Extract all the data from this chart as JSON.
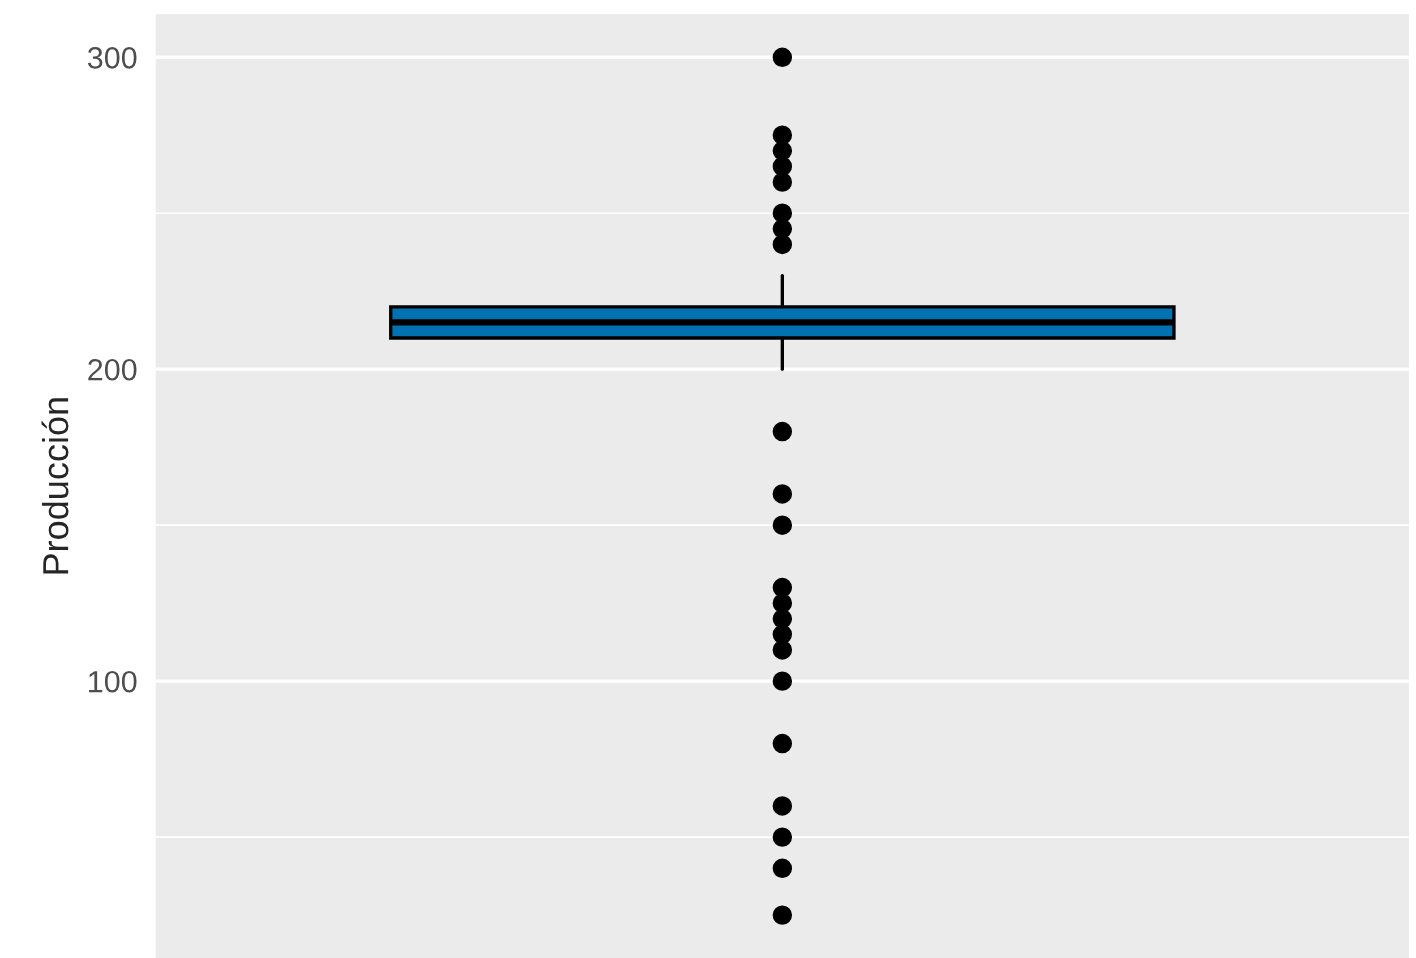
{
  "chart_data": {
    "type": "box",
    "ylabel": "Producción",
    "categories": [
      null
    ],
    "color": "#0072b2",
    "boxes": [
      {
        "low": 200,
        "q1": 210,
        "median": 215,
        "q3": 220,
        "high": 230,
        "outliers": [
          300,
          275,
          270,
          265,
          260,
          250,
          245,
          240,
          180,
          160,
          150,
          130,
          125,
          120,
          115,
          110,
          100,
          80,
          60,
          50,
          40,
          25
        ]
      }
    ],
    "ylim": [
      11.25,
      313.75
    ],
    "yticks": [
      {
        "value": 50,
        "label": null
      },
      100,
      {
        "value": 150,
        "label": null
      },
      200,
      {
        "value": 250,
        "label": null
      },
      300
    ],
    "grid": true
  }
}
